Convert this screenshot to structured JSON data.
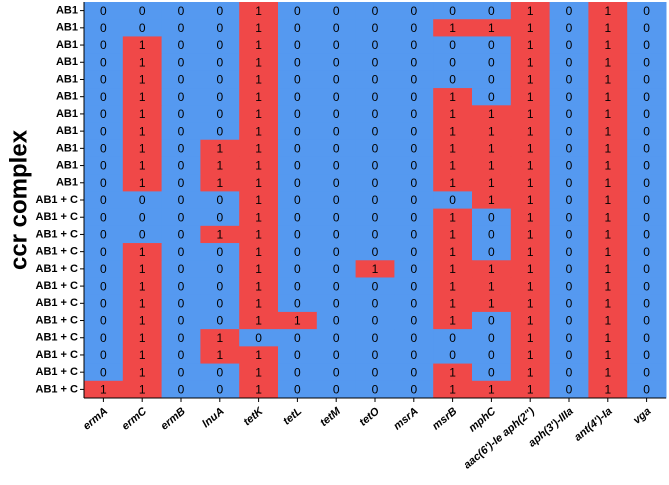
{
  "chart_data": {
    "type": "heatmap",
    "y_label": "ccr complex",
    "rows": [
      "AB1",
      "AB1",
      "AB1",
      "AB1",
      "AB1",
      "AB1",
      "AB1",
      "AB1",
      "AB1",
      "AB1",
      "AB1",
      "AB1 + C",
      "AB1 + C",
      "AB1 + C",
      "AB1 + C",
      "AB1 + C",
      "AB1 + C",
      "AB1 + C",
      "AB1 + C",
      "AB1 + C",
      "AB1 + C",
      "AB1 + C",
      "AB1 + C"
    ],
    "columns": [
      "ermA",
      "ermC",
      "ermB",
      "lnuA",
      "tetK",
      "tetL",
      "tetM",
      "tetO",
      "msrA",
      "msrB",
      "mphC",
      "aac(6')-Ie aph(2\")",
      "aph(3')-IIIa",
      "ant(4')-Ia",
      "vga"
    ],
    "values": [
      [
        0,
        0,
        0,
        0,
        1,
        0,
        0,
        0,
        0,
        0,
        0,
        1,
        0,
        1,
        0
      ],
      [
        0,
        0,
        0,
        0,
        1,
        0,
        0,
        0,
        0,
        1,
        1,
        1,
        0,
        1,
        0
      ],
      [
        0,
        1,
        0,
        0,
        1,
        0,
        0,
        0,
        0,
        0,
        0,
        1,
        0,
        1,
        0
      ],
      [
        0,
        1,
        0,
        0,
        1,
        0,
        0,
        0,
        0,
        0,
        0,
        1,
        0,
        1,
        0
      ],
      [
        0,
        1,
        0,
        0,
        1,
        0,
        0,
        0,
        0,
        0,
        0,
        1,
        0,
        1,
        0
      ],
      [
        0,
        1,
        0,
        0,
        1,
        0,
        0,
        0,
        0,
        1,
        0,
        1,
        0,
        1,
        0
      ],
      [
        0,
        1,
        0,
        0,
        1,
        0,
        0,
        0,
        0,
        1,
        1,
        1,
        0,
        1,
        0
      ],
      [
        0,
        1,
        0,
        0,
        1,
        0,
        0,
        0,
        0,
        1,
        1,
        1,
        0,
        1,
        0
      ],
      [
        0,
        1,
        0,
        1,
        1,
        0,
        0,
        0,
        0,
        1,
        1,
        1,
        0,
        1,
        0
      ],
      [
        0,
        1,
        0,
        1,
        1,
        0,
        0,
        0,
        0,
        1,
        1,
        1,
        0,
        1,
        0
      ],
      [
        0,
        1,
        0,
        1,
        1,
        0,
        0,
        0,
        0,
        1,
        1,
        1,
        0,
        1,
        0
      ],
      [
        0,
        0,
        0,
        0,
        1,
        0,
        0,
        0,
        0,
        0,
        1,
        1,
        0,
        1,
        0
      ],
      [
        0,
        0,
        0,
        0,
        1,
        0,
        0,
        0,
        0,
        1,
        0,
        1,
        0,
        1,
        0
      ],
      [
        0,
        0,
        0,
        1,
        1,
        0,
        0,
        0,
        0,
        1,
        0,
        1,
        0,
        1,
        0
      ],
      [
        0,
        1,
        0,
        0,
        1,
        0,
        0,
        0,
        0,
        1,
        0,
        1,
        0,
        1,
        0
      ],
      [
        0,
        1,
        0,
        0,
        1,
        0,
        0,
        1,
        0,
        1,
        1,
        1,
        0,
        1,
        0
      ],
      [
        0,
        1,
        0,
        0,
        1,
        0,
        0,
        0,
        0,
        1,
        1,
        1,
        0,
        1,
        0
      ],
      [
        0,
        1,
        0,
        0,
        1,
        0,
        0,
        0,
        0,
        1,
        1,
        1,
        0,
        1,
        0
      ],
      [
        0,
        1,
        0,
        0,
        1,
        1,
        0,
        0,
        0,
        1,
        0,
        1,
        0,
        1,
        0
      ],
      [
        0,
        1,
        0,
        1,
        0,
        0,
        0,
        0,
        0,
        0,
        0,
        1,
        0,
        1,
        0
      ],
      [
        0,
        1,
        0,
        1,
        1,
        0,
        0,
        0,
        0,
        0,
        0,
        1,
        0,
        1,
        0
      ],
      [
        0,
        1,
        0,
        0,
        1,
        0,
        0,
        0,
        0,
        1,
        0,
        1,
        0,
        1,
        0
      ],
      [
        1,
        1,
        0,
        0,
        1,
        0,
        0,
        0,
        0,
        1,
        1,
        1,
        0,
        1,
        0
      ]
    ],
    "colors": [
      "#5599f0",
      "#f04848"
    ]
  }
}
